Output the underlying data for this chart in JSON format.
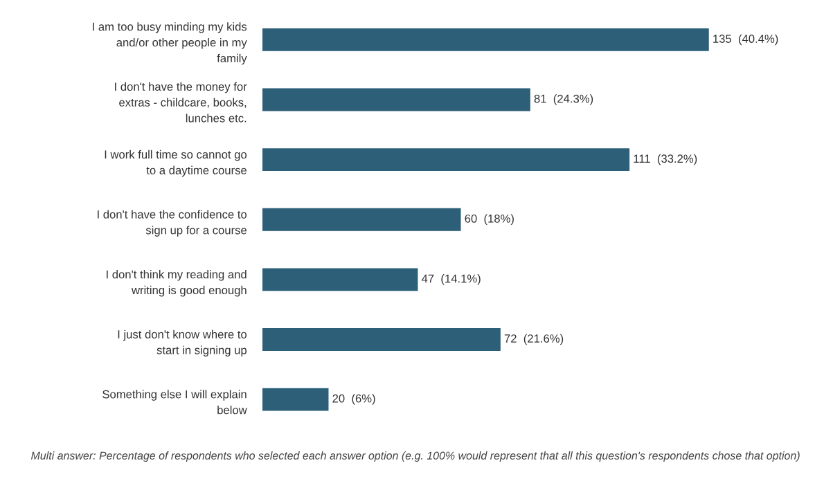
{
  "chart_data": {
    "type": "bar",
    "orientation": "horizontal",
    "categories": [
      "I am too busy minding my kids\nand/or other people in my\nfamily",
      "I don't have the money for\nextras - childcare, books,\nlunches etc.",
      "I work full time so cannot go\nto a daytime course",
      "I don't have the confidence to\nsign up for a course",
      "I don't think my reading and\nwriting is good enough",
      "I just don't know where to\nstart in signing up",
      "Something else I will explain\nbelow"
    ],
    "values": [
      135,
      81,
      111,
      60,
      47,
      72,
      20
    ],
    "value_labels": [
      "135  (40.4%)",
      "81  (24.3%)",
      "111  (33.2%)",
      "60  (18%)",
      "47  (14.1%)",
      "72  (21.6%)",
      "20  (6%)"
    ],
    "color": "#2d5f78",
    "annotations": [
      "Multi answer: Percentage of respondents who selected each answer option (e.g. 100% would represent that all this question's respondents chose that option)"
    ]
  }
}
